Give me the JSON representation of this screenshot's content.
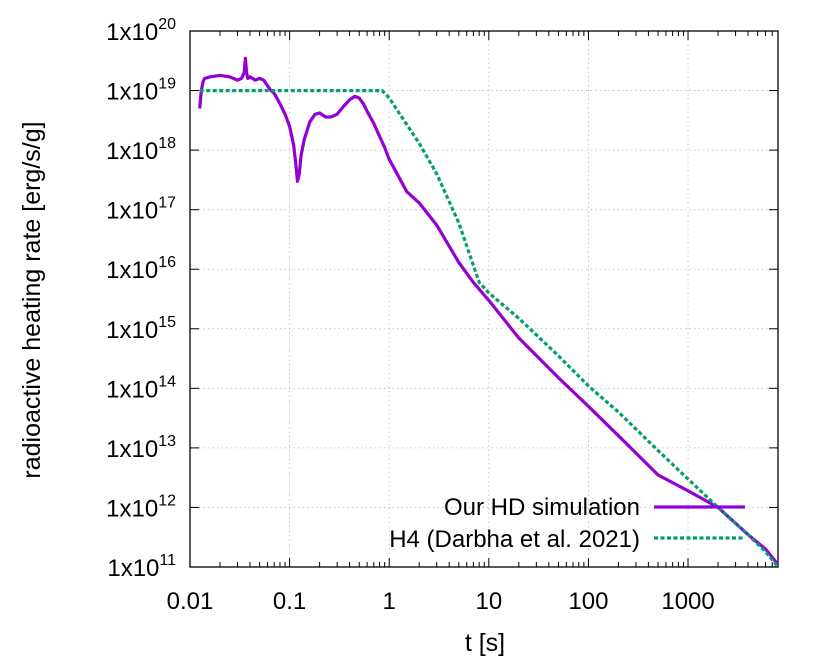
{
  "chart_data": {
    "type": "line",
    "xlabel": "t [s]",
    "ylabel": "radioactive heating rate [erg/s/g]",
    "xscale": "log",
    "yscale": "log",
    "xlim": [
      0.01,
      8000
    ],
    "ylim": [
      100000000000.0,
      1e+20
    ],
    "grid": true,
    "legend_position": "bottom-right",
    "x_tick_labels": [
      "0.01",
      "0.1",
      "1",
      "10",
      "100",
      "1000"
    ],
    "y_tick_labels": [
      {
        "mantissa": "1x10",
        "exponent": "11"
      },
      {
        "mantissa": "1x10",
        "exponent": "12"
      },
      {
        "mantissa": "1x10",
        "exponent": "13"
      },
      {
        "mantissa": "1x10",
        "exponent": "14"
      },
      {
        "mantissa": "1x10",
        "exponent": "15"
      },
      {
        "mantissa": "1x10",
        "exponent": "16"
      },
      {
        "mantissa": "1x10",
        "exponent": "17"
      },
      {
        "mantissa": "1x10",
        "exponent": "18"
      },
      {
        "mantissa": "1x10",
        "exponent": "19"
      },
      {
        "mantissa": "1x10",
        "exponent": "20"
      }
    ],
    "series": [
      {
        "name": "Our HD simulation",
        "color": "#9400d3",
        "dash": "solid",
        "x": [
          0.0125,
          0.013,
          0.0135,
          0.014,
          0.016,
          0.02,
          0.025,
          0.03,
          0.033,
          0.035,
          0.036,
          0.037,
          0.038,
          0.04,
          0.045,
          0.05,
          0.055,
          0.06,
          0.065,
          0.07,
          0.08,
          0.09,
          0.1,
          0.11,
          0.115,
          0.12,
          0.125,
          0.13,
          0.14,
          0.16,
          0.18,
          0.2,
          0.23,
          0.26,
          0.3,
          0.35,
          0.4,
          0.45,
          0.5,
          0.55,
          0.6,
          0.7,
          0.8,
          0.9,
          1.0,
          1.2,
          1.5,
          2.0,
          3.0,
          5.0,
          7.0,
          10,
          20,
          50,
          100,
          200,
          500,
          1000,
          2000,
          4000,
          6000,
          8000
        ],
        "y": [
          5e+18,
          1e+19,
          1.4e+19,
          1.6e+19,
          1.7e+19,
          1.8e+19,
          1.7e+19,
          1.5e+19,
          1.6e+19,
          2e+19,
          3.5e+19,
          2e+19,
          1.6e+19,
          1.7e+19,
          1.5e+19,
          1.6e+19,
          1.5e+19,
          1.2e+19,
          1e+19,
          9e+18,
          6e+18,
          4e+18,
          2.5e+18,
          1.2e+18,
          6e+17,
          3e+17,
          4e+17,
          8e+17,
          1.5e+18,
          3e+18,
          4e+18,
          4.2e+18,
          3.6e+18,
          3.6e+18,
          4e+18,
          5.5e+18,
          7e+18,
          8e+18,
          7.5e+18,
          6e+18,
          4.5e+18,
          2.8e+18,
          1.7e+18,
          1.1e+18,
          7e+17,
          4e+17,
          2e+17,
          1.3e+17,
          5.5e+16,
          1.3e+16,
          6000000000000000.0,
          3000000000000000.0,
          700000000000000.0,
          150000000000000.0,
          50000000000000.0,
          16000000000000.0,
          3500000000000.0,
          1900000000000.0,
          1000000000000.0,
          350000000000.0,
          200000000000.0,
          110000000000.0
        ]
      },
      {
        "name": "H4 (Darbha et al. 2021)",
        "color": "#009e73",
        "dash": "dotted",
        "x": [
          0.0125,
          0.85,
          1.0,
          2.0,
          3.0,
          5.0,
          8.0,
          10,
          20,
          50,
          100,
          200,
          500,
          1000,
          2000,
          4000,
          6000,
          8000
        ],
        "y": [
          1e+19,
          1e+19,
          7.5e+18,
          1.3e+18,
          4e+17,
          6e+16,
          6000000000000000.0,
          4000000000000000.0,
          1500000000000000.0,
          350000000000000.0,
          110000000000000.0,
          40000000000000.0,
          9000000000000.0,
          3000000000000.0,
          1000000000000.0,
          350000000000.0,
          180000000000.0,
          100000000000.0
        ]
      }
    ]
  }
}
